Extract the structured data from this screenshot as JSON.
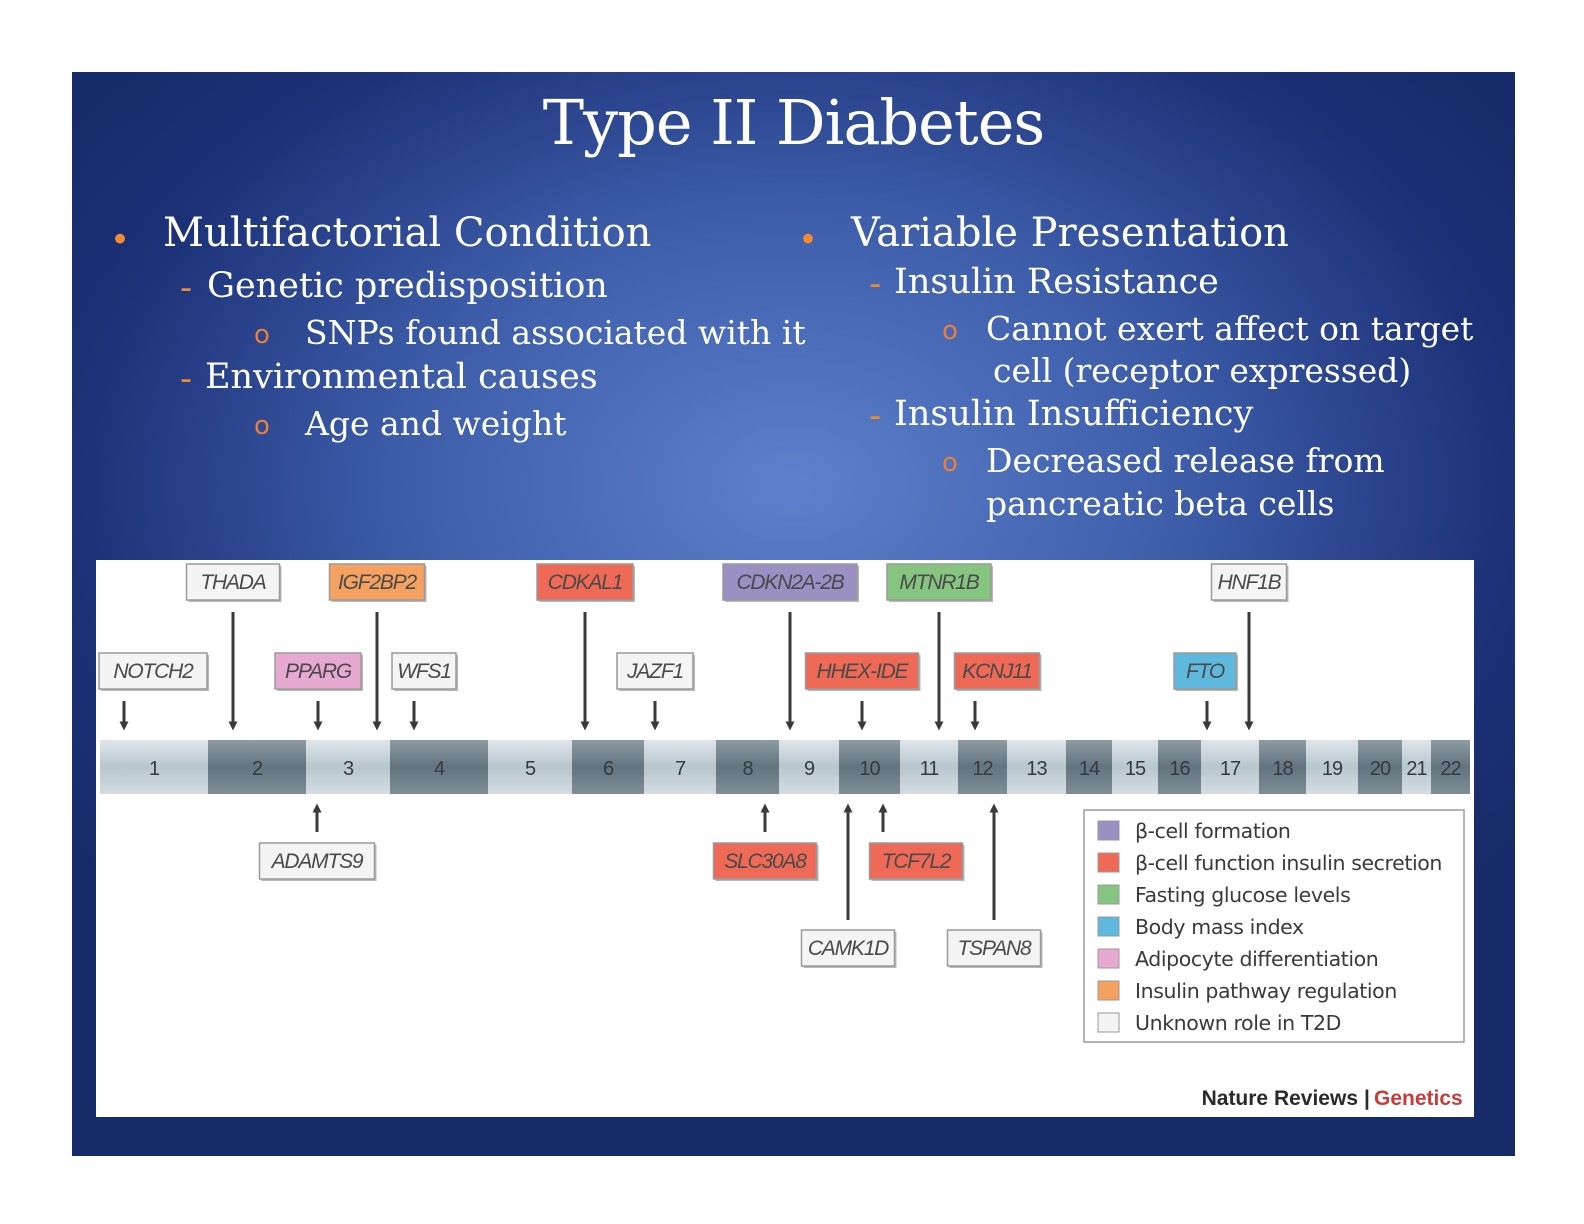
{
  "slide": {
    "title": "Type II Diabetes",
    "left_column": {
      "heading": "Multifactorial Condition",
      "items": [
        {
          "label": "Genetic predisposition",
          "sub": [
            "SNPs found associated with it"
          ]
        },
        {
          "label": "Environmental causes",
          "sub": [
            "Age and weight"
          ]
        }
      ]
    },
    "right_column": {
      "heading": "Variable Presentation",
      "items": [
        {
          "label": "Insulin Resistance",
          "sub": [
            "Cannot exert affect on target",
            "cell (receptor expressed)"
          ]
        },
        {
          "label": "Insulin Insufficiency",
          "sub": [
            "Decreased release from",
            "pancreatic beta cells"
          ]
        }
      ]
    },
    "markers": {
      "bullet": "•",
      "dash": "-",
      "circle": "o"
    }
  },
  "figure": {
    "chromosomes": [
      "1",
      "2",
      "3",
      "4",
      "5",
      "6",
      "7",
      "8",
      "9",
      "10",
      "11",
      "12",
      "13",
      "14",
      "15",
      "16",
      "17",
      "18",
      "19",
      "20",
      "21",
      "22"
    ],
    "genes_above": [
      {
        "name": "THADA",
        "role": "unknown",
        "chromosome": "2",
        "row": "upper"
      },
      {
        "name": "IGF2BP2",
        "role": "insulin_pathway",
        "chromosome": "3",
        "row": "upper"
      },
      {
        "name": "CDKAL1",
        "role": "beta_function",
        "chromosome": "6",
        "row": "upper"
      },
      {
        "name": "CDKN2A-2B",
        "role": "beta_formation",
        "chromosome": "9",
        "row": "upper"
      },
      {
        "name": "MTNR1B",
        "role": "fasting_glucose",
        "chromosome": "11",
        "row": "upper"
      },
      {
        "name": "HNF1B",
        "role": "unknown",
        "chromosome": "17",
        "row": "upper"
      },
      {
        "name": "NOTCH2",
        "role": "unknown",
        "chromosome": "1",
        "row": "lower"
      },
      {
        "name": "PPARG",
        "role": "adipocyte",
        "chromosome": "3",
        "row": "lower"
      },
      {
        "name": "WFS1",
        "role": "unknown",
        "chromosome": "4",
        "row": "lower"
      },
      {
        "name": "JAZF1",
        "role": "unknown",
        "chromosome": "7",
        "row": "lower"
      },
      {
        "name": "HHEX-IDE",
        "role": "beta_function",
        "chromosome": "10",
        "row": "lower"
      },
      {
        "name": "KCNJ11",
        "role": "beta_function",
        "chromosome": "11",
        "row": "lower"
      },
      {
        "name": "FTO",
        "role": "bmi",
        "chromosome": "16",
        "row": "lower"
      }
    ],
    "genes_below": [
      {
        "name": "ADAMTS9",
        "role": "unknown",
        "chromosome": "3"
      },
      {
        "name": "SLC30A8",
        "role": "beta_function",
        "chromosome": "8"
      },
      {
        "name": "TCF7L2",
        "role": "beta_function",
        "chromosome": "10"
      },
      {
        "name": "CAMK1D",
        "role": "unknown",
        "chromosome": "10"
      },
      {
        "name": "TSPAN8",
        "role": "unknown",
        "chromosome": "12"
      }
    ],
    "roles": {
      "beta_formation": {
        "label": "β-cell formation",
        "color": "#9b8fc4"
      },
      "beta_function": {
        "label": "β-cell function insulin secretion",
        "color": "#ef6a56"
      },
      "fasting_glucose": {
        "label": "Fasting glucose levels",
        "color": "#86c57f"
      },
      "bmi": {
        "label": "Body mass index",
        "color": "#5fb9de"
      },
      "adipocyte": {
        "label": "Adipocyte differentiation",
        "color": "#e7a9d2"
      },
      "insulin_pathway": {
        "label": "Insulin pathway regulation",
        "color": "#f5a260"
      },
      "unknown": {
        "label": "Unknown role in T2D",
        "color": "#f4f4f4"
      }
    },
    "legend_order": [
      "beta_formation",
      "beta_function",
      "fasting_glucose",
      "bmi",
      "adipocyte",
      "insulin_pathway",
      "unknown"
    ],
    "source": {
      "journal": "Nature Reviews",
      "separator": "|",
      "section": "Genetics"
    }
  }
}
